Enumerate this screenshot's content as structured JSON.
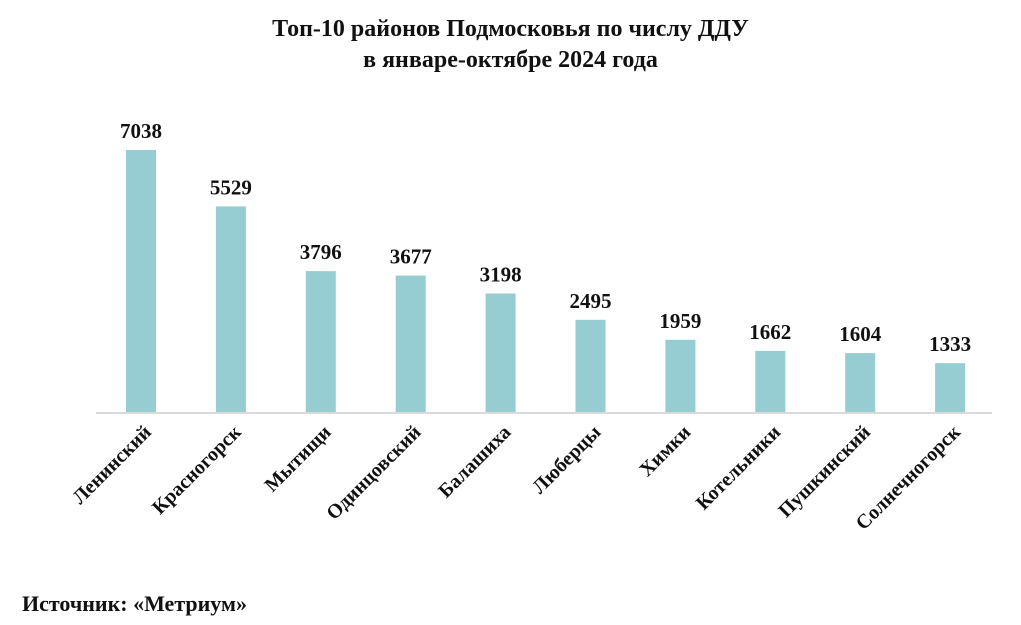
{
  "chart_data": {
    "type": "bar",
    "title": [
      "Топ-10 районов Подмосковья по числу ДДУ",
      "в январе-октябре 2024 года"
    ],
    "categories": [
      "Ленинский",
      "Красногорск",
      "Мытищи",
      "Одинцовский",
      "Балашиха",
      "Люберцы",
      "Химки",
      "Котельники",
      "Пушкинский",
      "Солнечногорск"
    ],
    "values": [
      7038,
      5529,
      3796,
      3677,
      3198,
      2495,
      1959,
      1662,
      1604,
      1333
    ],
    "ylim": [
      0,
      7038
    ],
    "grid": false,
    "legend": "none",
    "bar_color": "#96CDD3",
    "axis_color": "#D9D9D9"
  },
  "source": "Источник: «Метриум»"
}
